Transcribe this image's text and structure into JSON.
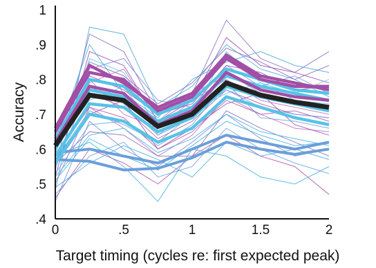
{
  "chart_data": {
    "type": "line",
    "title": "",
    "xlabel": "Target timing (cycles re: first expected peak)",
    "ylabel": "Accuracy",
    "x": [
      0,
      0.25,
      0.5,
      0.75,
      1,
      1.25,
      1.5,
      1.75,
      2
    ],
    "xlim": [
      0,
      2
    ],
    "ylim": [
      0.4,
      1.0
    ],
    "x_ticks": [
      {
        "value": 0,
        "label": "0"
      },
      {
        "value": 0.5,
        "label": ".5"
      },
      {
        "value": 1,
        "label": "1"
      },
      {
        "value": 1.5,
        "label": "1.5"
      },
      {
        "value": 2,
        "label": "2"
      }
    ],
    "y_ticks": [
      {
        "value": 0.4,
        "label": ".4"
      },
      {
        "value": 0.5,
        "label": ".5"
      },
      {
        "value": 0.6,
        "label": ".6"
      },
      {
        "value": 0.7,
        "label": ".7"
      },
      {
        "value": 0.8,
        "label": ".8"
      },
      {
        "value": 0.9,
        "label": ".9"
      },
      {
        "value": 1.0,
        "label": "1"
      }
    ],
    "grid": false,
    "legend": "none",
    "colors": {
      "mean": "#222222",
      "thick_cyan": "#56c3e6",
      "thick_magenta": "#a24ea6",
      "thick_blue": "#6a9fd8",
      "thin": [
        "#5fc5e8",
        "#4aa8dc",
        "#8a6cc0",
        "#b055a8",
        "#7b8fd4",
        "#9a4fb0",
        "#3fb2e0",
        "#c070b8",
        "#6aa0e0"
      ]
    },
    "series": [
      {
        "role": "mean",
        "values": [
          0.61,
          0.755,
          0.74,
          0.665,
          0.7,
          0.79,
          0.755,
          0.735,
          0.72
        ]
      },
      {
        "role": "thick_blue",
        "values": [
          0.57,
          0.565,
          0.54,
          0.545,
          0.575,
          0.62,
          0.6,
          0.585,
          0.6
        ]
      },
      {
        "role": "thick_blue",
        "values": [
          0.59,
          0.6,
          0.58,
          0.56,
          0.6,
          0.64,
          0.62,
          0.6,
          0.62
        ]
      },
      {
        "role": "thick_cyan",
        "values": [
          0.6,
          0.77,
          0.75,
          0.68,
          0.72,
          0.81,
          0.78,
          0.76,
          0.74
        ]
      },
      {
        "role": "thick_cyan",
        "values": [
          0.63,
          0.8,
          0.78,
          0.7,
          0.74,
          0.83,
          0.8,
          0.77,
          0.76
        ]
      },
      {
        "role": "thick_cyan",
        "values": [
          0.58,
          0.73,
          0.72,
          0.65,
          0.69,
          0.78,
          0.75,
          0.73,
          0.71
        ]
      },
      {
        "role": "thick_cyan",
        "values": [
          0.56,
          0.7,
          0.68,
          0.62,
          0.66,
          0.75,
          0.72,
          0.69,
          0.67
        ]
      },
      {
        "role": "thick_magenta",
        "values": [
          0.65,
          0.82,
          0.8,
          0.71,
          0.75,
          0.86,
          0.8,
          0.78,
          0.78
        ]
      },
      {
        "role": "thick_magenta",
        "values": [
          0.62,
          0.78,
          0.76,
          0.67,
          0.71,
          0.82,
          0.77,
          0.75,
          0.74
        ]
      },
      {
        "role": "thick_magenta",
        "values": [
          0.66,
          0.84,
          0.79,
          0.72,
          0.76,
          0.87,
          0.81,
          0.79,
          0.77
        ]
      },
      {
        "role": "thin",
        "values": [
          0.48,
          0.95,
          0.93,
          0.72,
          0.78,
          0.9,
          0.83,
          0.8,
          0.75
        ]
      },
      {
        "role": "thin",
        "values": [
          0.55,
          0.93,
          0.88,
          0.7,
          0.76,
          0.97,
          0.86,
          0.82,
          0.88
        ]
      },
      {
        "role": "thin",
        "values": [
          0.46,
          0.6,
          0.56,
          0.5,
          0.58,
          0.64,
          0.58,
          0.55,
          0.47
        ]
      },
      {
        "role": "thin",
        "values": [
          0.45,
          0.68,
          0.6,
          0.55,
          0.62,
          0.7,
          0.63,
          0.58,
          0.6
        ]
      },
      {
        "role": "thin",
        "values": [
          0.52,
          0.88,
          0.84,
          0.68,
          0.74,
          0.92,
          0.84,
          0.82,
          0.79
        ]
      },
      {
        "role": "thin",
        "values": [
          0.58,
          0.62,
          0.55,
          0.45,
          0.6,
          0.58,
          0.52,
          0.5,
          0.55
        ]
      },
      {
        "role": "thin",
        "values": [
          0.5,
          0.72,
          0.66,
          0.58,
          0.64,
          0.75,
          0.7,
          0.66,
          0.65
        ]
      },
      {
        "role": "thin",
        "values": [
          0.47,
          0.58,
          0.62,
          0.52,
          0.55,
          0.66,
          0.6,
          0.56,
          0.53
        ]
      },
      {
        "role": "thin",
        "values": [
          0.54,
          0.86,
          0.82,
          0.66,
          0.7,
          0.88,
          0.79,
          0.76,
          0.8
        ]
      },
      {
        "role": "thin",
        "values": [
          0.62,
          0.9,
          0.76,
          0.69,
          0.8,
          0.85,
          0.88,
          0.84,
          0.82
        ]
      },
      {
        "role": "thin",
        "values": [
          0.56,
          0.65,
          0.64,
          0.58,
          0.58,
          0.71,
          0.66,
          0.62,
          0.58
        ]
      },
      {
        "role": "thin",
        "values": [
          0.6,
          0.76,
          0.72,
          0.63,
          0.68,
          0.77,
          0.73,
          0.7,
          0.69
        ]
      },
      {
        "role": "thin",
        "values": [
          0.64,
          0.83,
          0.86,
          0.74,
          0.72,
          0.84,
          0.78,
          0.81,
          0.76
        ]
      },
      {
        "role": "thin",
        "values": [
          0.57,
          0.7,
          0.74,
          0.6,
          0.66,
          0.73,
          0.76,
          0.67,
          0.64
        ]
      },
      {
        "role": "thin",
        "values": [
          0.51,
          0.63,
          0.58,
          0.54,
          0.61,
          0.68,
          0.64,
          0.61,
          0.62
        ]
      },
      {
        "role": "thin",
        "values": [
          0.59,
          0.8,
          0.7,
          0.66,
          0.74,
          0.8,
          0.74,
          0.72,
          0.7
        ]
      },
      {
        "role": "thin",
        "values": [
          0.53,
          0.67,
          0.68,
          0.61,
          0.67,
          0.79,
          0.69,
          0.68,
          0.66
        ]
      },
      {
        "role": "thin",
        "values": [
          0.61,
          0.74,
          0.78,
          0.64,
          0.71,
          0.76,
          0.79,
          0.74,
          0.73
        ]
      },
      {
        "role": "thin",
        "values": [
          0.49,
          0.56,
          0.61,
          0.57,
          0.52,
          0.62,
          0.58,
          0.6,
          0.57
        ]
      },
      {
        "role": "thin",
        "values": [
          0.63,
          0.85,
          0.81,
          0.73,
          0.79,
          0.89,
          0.85,
          0.8,
          0.84
        ]
      },
      {
        "role": "thin",
        "values": [
          0.58,
          0.72,
          0.69,
          0.6,
          0.65,
          0.74,
          0.7,
          0.71,
          0.68
        ]
      },
      {
        "role": "thin",
        "values": [
          0.55,
          0.78,
          0.73,
          0.64,
          0.69,
          0.82,
          0.76,
          0.73,
          0.72
        ]
      },
      {
        "role": "thin",
        "values": [
          0.66,
          0.81,
          0.77,
          0.7,
          0.73,
          0.84,
          0.82,
          0.77,
          0.78
        ]
      },
      {
        "role": "thin",
        "values": [
          0.52,
          0.64,
          0.66,
          0.59,
          0.63,
          0.7,
          0.65,
          0.63,
          0.61
        ]
      },
      {
        "role": "thin",
        "values": [
          0.6,
          0.79,
          0.83,
          0.68,
          0.76,
          0.81,
          0.77,
          0.75,
          0.74
        ]
      },
      {
        "role": "thin",
        "values": [
          0.57,
          0.71,
          0.67,
          0.62,
          0.7,
          0.77,
          0.72,
          0.7,
          0.69
        ]
      }
    ]
  }
}
